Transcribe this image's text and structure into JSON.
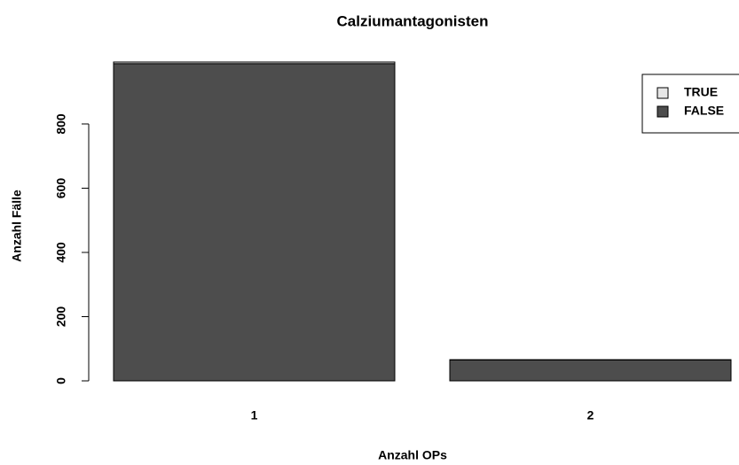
{
  "chart_data": {
    "type": "bar",
    "stacked": true,
    "title": "Calziumantagonisten",
    "x_label": "Anzahl OPs",
    "y_label": "Anzahl Fälle",
    "categories": [
      "1",
      "2"
    ],
    "series": [
      {
        "name": "FALSE",
        "color": "#4d4d4d",
        "values": [
          988,
          65
        ]
      },
      {
        "name": "TRUE",
        "color": "#e6e6e6",
        "values": [
          5,
          1
        ]
      }
    ],
    "ylim": [
      0,
      993
    ],
    "yticks": [
      0,
      200,
      400,
      600,
      800
    ],
    "legend": "top-right"
  }
}
